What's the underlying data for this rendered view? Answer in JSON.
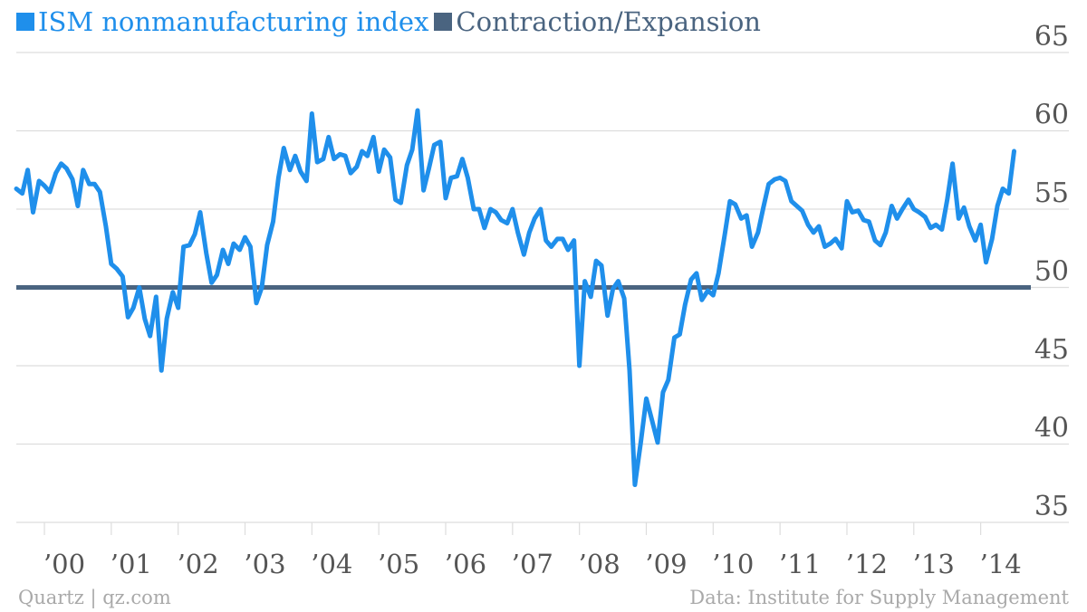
{
  "legend": {
    "series_label": "ISM nonmanufacturing index",
    "threshold_label": "Contraction/Expansion"
  },
  "footer": {
    "source": "Quartz | qz.com",
    "credit": "Data: Institute for Supply Management"
  },
  "colors": {
    "series": "#1f8feb",
    "threshold": "#4a6480",
    "grid": "#dddddd",
    "tick_text": "#555555",
    "footer_text": "#a9a9a9"
  },
  "chart_data": {
    "type": "line",
    "title": "",
    "xlabel": "",
    "ylabel": "",
    "y_ticks": [
      35,
      40,
      45,
      50,
      55,
      60,
      65
    ],
    "ylim": [
      35,
      65
    ],
    "xlim": [
      1999.58,
      2014.75
    ],
    "y_axis_side": "right",
    "grid": true,
    "x_tick_labels": [
      {
        "label": "’00",
        "x": 2000
      },
      {
        "label": "’01",
        "x": 2001
      },
      {
        "label": "’02",
        "x": 2002
      },
      {
        "label": "’03",
        "x": 2003
      },
      {
        "label": "’04",
        "x": 2004
      },
      {
        "label": "’05",
        "x": 2005
      },
      {
        "label": "’06",
        "x": 2006
      },
      {
        "label": "’07",
        "x": 2007
      },
      {
        "label": "’08",
        "x": 2008
      },
      {
        "label": "’09",
        "x": 2009
      },
      {
        "label": "’10",
        "x": 2010
      },
      {
        "label": "’11",
        "x": 2011
      },
      {
        "label": "’12",
        "x": 2012
      },
      {
        "label": "’13",
        "x": 2013
      },
      {
        "label": "’14",
        "x": 2014
      }
    ],
    "series": [
      {
        "name": "ISM nonmanufacturing index",
        "points": [
          [
            1999.58,
            56.3
          ],
          [
            1999.67,
            56.0
          ],
          [
            1999.75,
            57.5
          ],
          [
            1999.83,
            54.8
          ],
          [
            1999.92,
            56.8
          ],
          [
            2000.0,
            56.5
          ],
          [
            2000.08,
            56.1
          ],
          [
            2000.17,
            57.3
          ],
          [
            2000.25,
            57.9
          ],
          [
            2000.33,
            57.6
          ],
          [
            2000.42,
            56.9
          ],
          [
            2000.5,
            55.2
          ],
          [
            2000.58,
            57.5
          ],
          [
            2000.67,
            56.6
          ],
          [
            2000.75,
            56.6
          ],
          [
            2000.83,
            56.1
          ],
          [
            2000.92,
            53.9
          ],
          [
            2001.0,
            51.5
          ],
          [
            2001.08,
            51.2
          ],
          [
            2001.17,
            50.7
          ],
          [
            2001.25,
            48.1
          ],
          [
            2001.33,
            48.7
          ],
          [
            2001.42,
            50.0
          ],
          [
            2001.5,
            48.0
          ],
          [
            2001.58,
            46.9
          ],
          [
            2001.67,
            49.4
          ],
          [
            2001.75,
            44.7
          ],
          [
            2001.83,
            48.0
          ],
          [
            2001.92,
            49.7
          ],
          [
            2002.0,
            48.7
          ],
          [
            2002.08,
            52.6
          ],
          [
            2002.17,
            52.7
          ],
          [
            2002.25,
            53.4
          ],
          [
            2002.33,
            54.8
          ],
          [
            2002.42,
            52.2
          ],
          [
            2002.5,
            50.3
          ],
          [
            2002.58,
            50.8
          ],
          [
            2002.67,
            52.4
          ],
          [
            2002.75,
            51.5
          ],
          [
            2002.83,
            52.8
          ],
          [
            2002.92,
            52.4
          ],
          [
            2003.0,
            53.2
          ],
          [
            2003.08,
            52.6
          ],
          [
            2003.17,
            49.0
          ],
          [
            2003.25,
            50.0
          ],
          [
            2003.33,
            52.7
          ],
          [
            2003.42,
            54.2
          ],
          [
            2003.5,
            57.0
          ],
          [
            2003.58,
            58.9
          ],
          [
            2003.67,
            57.5
          ],
          [
            2003.75,
            58.4
          ],
          [
            2003.83,
            57.4
          ],
          [
            2003.92,
            56.8
          ],
          [
            2004.0,
            61.1
          ],
          [
            2004.08,
            58.0
          ],
          [
            2004.17,
            58.2
          ],
          [
            2004.25,
            59.6
          ],
          [
            2004.33,
            58.2
          ],
          [
            2004.42,
            58.5
          ],
          [
            2004.5,
            58.4
          ],
          [
            2004.58,
            57.3
          ],
          [
            2004.67,
            57.7
          ],
          [
            2004.75,
            58.7
          ],
          [
            2004.83,
            58.4
          ],
          [
            2004.92,
            59.6
          ],
          [
            2005.0,
            57.4
          ],
          [
            2005.08,
            58.8
          ],
          [
            2005.17,
            58.3
          ],
          [
            2005.25,
            55.6
          ],
          [
            2005.33,
            55.4
          ],
          [
            2005.42,
            57.8
          ],
          [
            2005.5,
            58.8
          ],
          [
            2005.58,
            61.3
          ],
          [
            2005.67,
            56.2
          ],
          [
            2005.75,
            57.6
          ],
          [
            2005.83,
            59.1
          ],
          [
            2005.92,
            59.3
          ],
          [
            2006.0,
            55.7
          ],
          [
            2006.08,
            57.0
          ],
          [
            2006.17,
            57.1
          ],
          [
            2006.25,
            58.2
          ],
          [
            2006.33,
            57.0
          ],
          [
            2006.42,
            55.0
          ],
          [
            2006.5,
            55.0
          ],
          [
            2006.58,
            53.8
          ],
          [
            2006.67,
            55.0
          ],
          [
            2006.75,
            54.8
          ],
          [
            2006.83,
            54.3
          ],
          [
            2006.92,
            54.1
          ],
          [
            2007.0,
            55.0
          ],
          [
            2007.08,
            53.5
          ],
          [
            2007.17,
            52.1
          ],
          [
            2007.25,
            53.5
          ],
          [
            2007.33,
            54.4
          ],
          [
            2007.42,
            55.0
          ],
          [
            2007.5,
            53.0
          ],
          [
            2007.58,
            52.6
          ],
          [
            2007.67,
            53.1
          ],
          [
            2007.75,
            53.1
          ],
          [
            2007.83,
            52.4
          ],
          [
            2007.92,
            53.0
          ],
          [
            2008.0,
            45.0
          ],
          [
            2008.08,
            50.4
          ],
          [
            2008.17,
            49.4
          ],
          [
            2008.25,
            51.7
          ],
          [
            2008.33,
            51.4
          ],
          [
            2008.42,
            48.2
          ],
          [
            2008.5,
            49.9
          ],
          [
            2008.58,
            50.4
          ],
          [
            2008.67,
            49.3
          ],
          [
            2008.75,
            44.7
          ],
          [
            2008.83,
            37.4
          ],
          [
            2008.92,
            40.2
          ],
          [
            2009.0,
            42.9
          ],
          [
            2009.08,
            41.6
          ],
          [
            2009.17,
            40.1
          ],
          [
            2009.25,
            43.3
          ],
          [
            2009.33,
            44.1
          ],
          [
            2009.42,
            46.8
          ],
          [
            2009.5,
            47.0
          ],
          [
            2009.58,
            48.9
          ],
          [
            2009.67,
            50.5
          ],
          [
            2009.75,
            50.9
          ],
          [
            2009.83,
            49.2
          ],
          [
            2009.92,
            49.8
          ],
          [
            2010.0,
            49.5
          ],
          [
            2010.08,
            50.9
          ],
          [
            2010.17,
            53.3
          ],
          [
            2010.25,
            55.5
          ],
          [
            2010.33,
            55.3
          ],
          [
            2010.42,
            54.4
          ],
          [
            2010.5,
            54.6
          ],
          [
            2010.58,
            52.6
          ],
          [
            2010.67,
            53.5
          ],
          [
            2010.75,
            55.1
          ],
          [
            2010.83,
            56.6
          ],
          [
            2010.92,
            56.9
          ],
          [
            2011.0,
            57.0
          ],
          [
            2011.08,
            56.8
          ],
          [
            2011.17,
            55.5
          ],
          [
            2011.25,
            55.2
          ],
          [
            2011.33,
            54.9
          ],
          [
            2011.42,
            54.0
          ],
          [
            2011.5,
            53.5
          ],
          [
            2011.58,
            53.9
          ],
          [
            2011.67,
            52.6
          ],
          [
            2011.75,
            52.8
          ],
          [
            2011.83,
            53.1
          ],
          [
            2011.92,
            52.5
          ],
          [
            2012.0,
            55.5
          ],
          [
            2012.08,
            54.8
          ],
          [
            2012.17,
            54.9
          ],
          [
            2012.25,
            54.3
          ],
          [
            2012.33,
            54.2
          ],
          [
            2012.42,
            53.0
          ],
          [
            2012.5,
            52.7
          ],
          [
            2012.58,
            53.5
          ],
          [
            2012.67,
            55.2
          ],
          [
            2012.75,
            54.4
          ],
          [
            2012.83,
            55.0
          ],
          [
            2012.92,
            55.6
          ],
          [
            2013.0,
            55.0
          ],
          [
            2013.08,
            54.8
          ],
          [
            2013.17,
            54.5
          ],
          [
            2013.25,
            53.8
          ],
          [
            2013.33,
            54.0
          ],
          [
            2013.42,
            53.7
          ],
          [
            2013.5,
            55.6
          ],
          [
            2013.58,
            57.9
          ],
          [
            2013.67,
            54.4
          ],
          [
            2013.75,
            55.1
          ],
          [
            2013.83,
            53.9
          ],
          [
            2013.92,
            53.0
          ],
          [
            2014.0,
            54.0
          ],
          [
            2014.08,
            51.6
          ],
          [
            2014.17,
            53.1
          ],
          [
            2014.25,
            55.2
          ],
          [
            2014.33,
            56.3
          ],
          [
            2014.42,
            56.0
          ],
          [
            2014.5,
            58.7
          ]
        ]
      },
      {
        "name": "Contraction/Expansion",
        "points": [
          [
            1999.58,
            50
          ],
          [
            2014.75,
            50
          ]
        ]
      }
    ]
  }
}
